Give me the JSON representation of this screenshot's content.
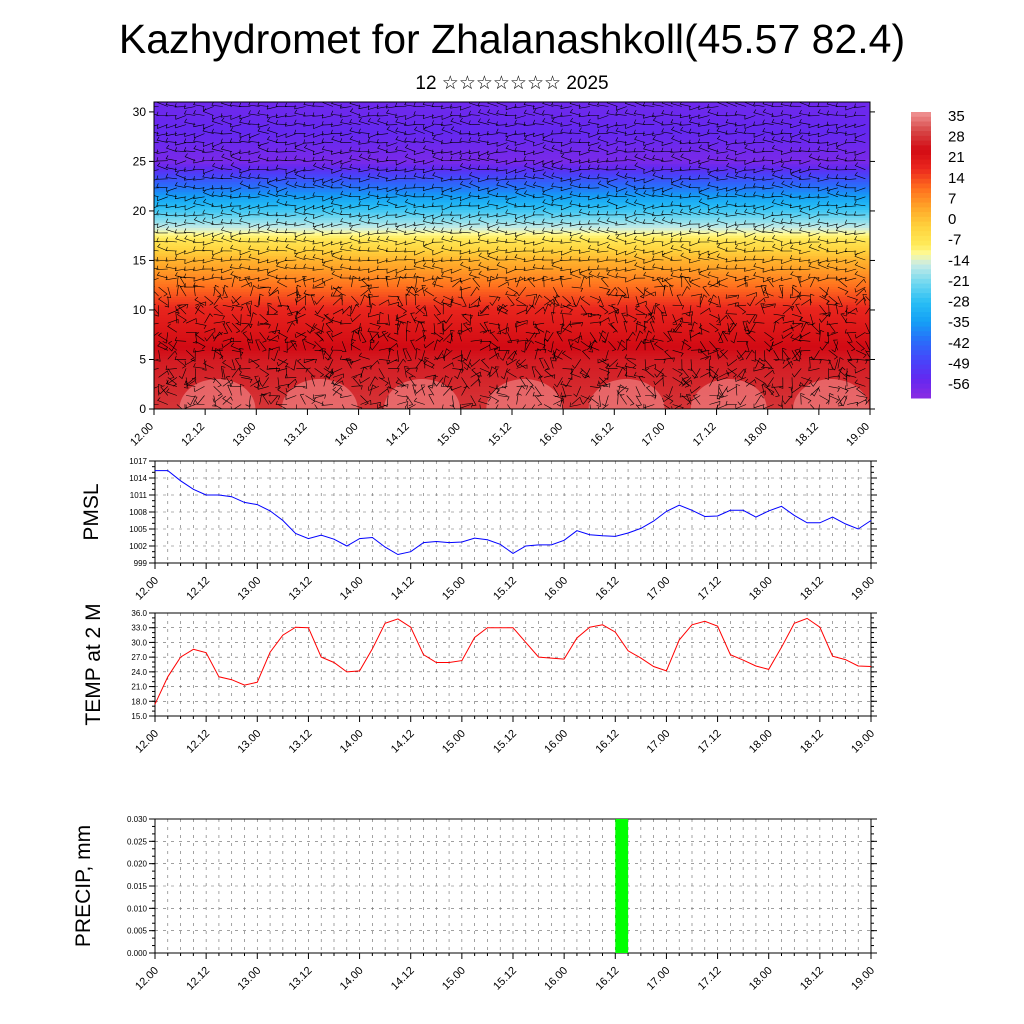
{
  "title": "Kazhydromet for Zhalanashkoll(45.57 82.4)",
  "subtitle": "12 ☆☆☆☆☆☆☆ 2025",
  "colors": {
    "pmsl_line": "#0000ff",
    "temp_line": "#ff0000",
    "precip_bar": "#00ff00",
    "wind_barb": "#000000"
  },
  "chart_data": [
    {
      "type": "heatmap",
      "name": "cross-section",
      "x_ticks": [
        "12.00",
        "12.12",
        "13.00",
        "13.12",
        "14.00",
        "14.12",
        "15.00",
        "15.12",
        "16.00",
        "16.12",
        "17.00",
        "17.12",
        "18.00",
        "18.12",
        "19.00"
      ],
      "y_ticks": [
        "0",
        "5",
        "10",
        "15",
        "20",
        "25",
        "30"
      ],
      "ylim": [
        0,
        31
      ],
      "colorbar_labels": [
        "35",
        "28",
        "21",
        "14",
        "7",
        "0",
        "-7",
        "-14",
        "-21",
        "-28",
        "-35",
        "-42",
        "-49",
        "-56"
      ],
      "colorbar_range": [
        -63,
        42
      ],
      "overlay": "wind barbs",
      "temperature_levels": [
        {
          "level": 0,
          "value": 33
        },
        {
          "level": 5,
          "value": 30
        },
        {
          "level": 10,
          "value": 22
        },
        {
          "level": 15,
          "value": 5
        },
        {
          "level": 17,
          "value": -5
        },
        {
          "level": 20,
          "value": -25
        },
        {
          "level": 23,
          "value": -45
        },
        {
          "level": 25,
          "value": -60
        },
        {
          "level": 28,
          "value": -56
        },
        {
          "level": 31,
          "value": -58
        }
      ]
    },
    {
      "type": "line",
      "ylabel": "PMSL",
      "ylim": [
        999,
        1017
      ],
      "y_ticks": [
        "1017",
        "1014",
        "1011",
        "1008",
        "1005",
        "1002",
        "999"
      ],
      "x_ticks": [
        "12.00",
        "12.12",
        "13.00",
        "13.12",
        "14.00",
        "14.12",
        "15.00",
        "15.12",
        "16.00",
        "16.12",
        "17.00",
        "17.12",
        "18.00",
        "18.12",
        "19.00"
      ],
      "x": [
        0,
        3,
        6,
        9,
        12,
        15,
        18,
        21,
        24,
        27,
        30,
        33,
        36,
        39,
        42,
        45,
        48,
        51,
        54,
        57,
        60,
        63,
        66,
        69,
        72,
        75,
        78,
        81,
        84,
        87,
        90,
        93,
        96,
        99,
        102,
        105,
        108,
        111,
        114,
        117,
        120,
        123,
        126,
        129,
        132,
        135,
        138,
        141,
        144,
        147,
        150,
        153,
        156,
        159,
        162,
        165,
        168
      ],
      "series": [
        {
          "values": [
            1015.3,
            1015.3,
            1013.5,
            1012.0,
            1011.0,
            1011.0,
            1010.7,
            1009.7,
            1009.3,
            1008.2,
            1006.5,
            1004.2,
            1003.3,
            1003.9,
            1003.2,
            1002.0,
            1003.3,
            1003.5,
            1001.8,
            1000.5,
            1001.0,
            1002.6,
            1002.8,
            1002.6,
            1002.7,
            1003.4,
            1003.1,
            1002.3,
            1000.7,
            1002.0,
            1002.2,
            1002.2,
            1003.0,
            1004.7,
            1004.0,
            1003.8,
            1003.7,
            1004.3,
            1005.1,
            1006.4,
            1008.1,
            1009.2,
            1008.3,
            1007.2,
            1007.3,
            1008.3,
            1008.3,
            1007.1,
            1008.2,
            1009.0,
            1007.4,
            1006.1,
            1006.1,
            1007.1,
            1005.9,
            1005.0,
            1006.5
          ]
        }
      ]
    },
    {
      "type": "line",
      "ylabel": "TEMP at 2 M",
      "ylim": [
        15,
        36
      ],
      "y_ticks": [
        "36.0",
        "33.0",
        "30.0",
        "27.0",
        "24.0",
        "21.0",
        "18.0",
        "15.0"
      ],
      "x_ticks": [
        "12.00",
        "12.12",
        "13.00",
        "13.12",
        "14.00",
        "14.12",
        "15.00",
        "15.12",
        "16.00",
        "16.12",
        "17.00",
        "17.12",
        "18.00",
        "18.12",
        "19.00"
      ],
      "x": [
        0,
        3,
        6,
        9,
        12,
        15,
        18,
        21,
        24,
        27,
        30,
        33,
        36,
        39,
        42,
        45,
        48,
        51,
        54,
        57,
        60,
        63,
        66,
        69,
        72,
        75,
        78,
        81,
        84,
        87,
        90,
        93,
        96,
        99,
        102,
        105,
        108,
        111,
        114,
        117,
        120,
        123,
        126,
        129,
        132,
        135,
        138,
        141,
        144,
        147,
        150,
        153,
        156,
        159,
        162,
        165,
        168
      ],
      "series": [
        {
          "values": [
            17.4,
            23.0,
            27.0,
            28.6,
            27.9,
            23.0,
            22.4,
            21.3,
            21.9,
            28.0,
            31.5,
            33.1,
            33.0,
            27.0,
            25.9,
            24.0,
            24.2,
            28.7,
            33.9,
            34.8,
            33.1,
            27.5,
            25.9,
            25.9,
            26.3,
            31.0,
            33.0,
            33.0,
            33.0,
            30.0,
            27.0,
            26.8,
            26.6,
            30.9,
            33.1,
            33.6,
            32.1,
            28.3,
            26.8,
            25.1,
            24.2,
            30.5,
            33.6,
            34.3,
            33.3,
            27.5,
            26.4,
            25.2,
            24.5,
            29.0,
            33.9,
            34.9,
            33.1,
            27.2,
            26.5,
            25.2,
            25.1
          ]
        }
      ]
    },
    {
      "type": "bar",
      "ylabel": "PRECIP, mm",
      "ylim": [
        0,
        0.03
      ],
      "y_ticks": [
        "0.030",
        "0.025",
        "0.020",
        "0.015",
        "0.010",
        "0.005",
        "0.000"
      ],
      "x_ticks": [
        "12.00",
        "12.12",
        "13.00",
        "13.12",
        "14.00",
        "14.12",
        "15.00",
        "15.12",
        "16.00",
        "16.12",
        "17.00",
        "17.12",
        "18.00",
        "18.12",
        "19.00"
      ],
      "bars": [
        {
          "x_start": 108,
          "x_end": 111,
          "value": 0.03
        }
      ]
    }
  ]
}
